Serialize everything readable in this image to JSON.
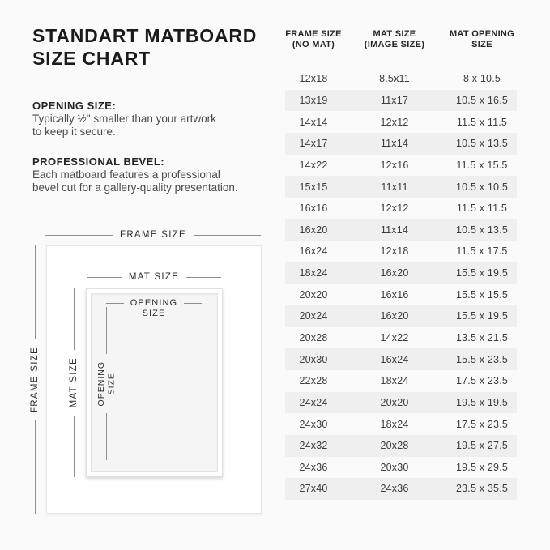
{
  "title": {
    "line1": "STANDART MATBOARD",
    "line2": "SIZE CHART"
  },
  "sections": {
    "opening": {
      "heading": "OPENING SIZE:",
      "line1": "Typically ½\" smaller than your artwork",
      "line2": "to keep it secure."
    },
    "bevel": {
      "heading": "PROFESSIONAL BEVEL:",
      "line1": "Each matboard features a professional",
      "line2": "bevel cut for a gallery-quality presentation."
    }
  },
  "diagram": {
    "frame_size_label": "FRAME SIZE",
    "mat_size_label": "MAT SIZE",
    "opening_size_line1": "OPENING",
    "opening_size_line2": "SIZE"
  },
  "table": {
    "headers": [
      {
        "line1": "FRAME SIZE",
        "line2": "(NO MAT)"
      },
      {
        "line1": "MAT SIZE",
        "line2": "(IMAGE SIZE)"
      },
      {
        "line1": "MAT OPENING",
        "line2": "SIZE"
      }
    ],
    "rows": [
      [
        "12x18",
        "8.5x11",
        "8 x 10.5"
      ],
      [
        "13x19",
        "11x17",
        "10.5 x 16.5"
      ],
      [
        "14x14",
        "12x12",
        "11.5 x 11.5"
      ],
      [
        "14x17",
        "11x14",
        "10.5 x 13.5"
      ],
      [
        "14x22",
        "12x16",
        "11.5 x 15.5"
      ],
      [
        "15x15",
        "11x11",
        "10.5 x 10.5"
      ],
      [
        "16x16",
        "12x12",
        "11.5 x 11.5"
      ],
      [
        "16x20",
        "11x14",
        "10.5 x 13.5"
      ],
      [
        "16x24",
        "12x18",
        "11.5 x 17.5"
      ],
      [
        "18x24",
        "16x20",
        "15.5 x 19.5"
      ],
      [
        "20x20",
        "16x16",
        "15.5 x 15.5"
      ],
      [
        "20x24",
        "16x20",
        "15.5 x 19.5"
      ],
      [
        "20x28",
        "14x22",
        "13.5 x 21.5"
      ],
      [
        "20x30",
        "16x24",
        "15.5 x 23.5"
      ],
      [
        "22x28",
        "18x24",
        "17.5 x 23.5"
      ],
      [
        "24x24",
        "20x20",
        "19.5 x 19.5"
      ],
      [
        "24x30",
        "18x24",
        "17.5 x 23.5"
      ],
      [
        "24x32",
        "20x28",
        "19.5 x 27.5"
      ],
      [
        "24x36",
        "20x30",
        "19.5 x 29.5"
      ],
      [
        "27x40",
        "24x36",
        "23.5 x 35.5"
      ]
    ]
  },
  "colors": {
    "background": "#fafafa",
    "stripe": "#efefef",
    "title_text": "#1a1a1a",
    "body_text": "#4a4a4a",
    "line": "#8f8f8f",
    "frame_fill": "#ffffff",
    "opening_fill": "#f5f5f5"
  }
}
